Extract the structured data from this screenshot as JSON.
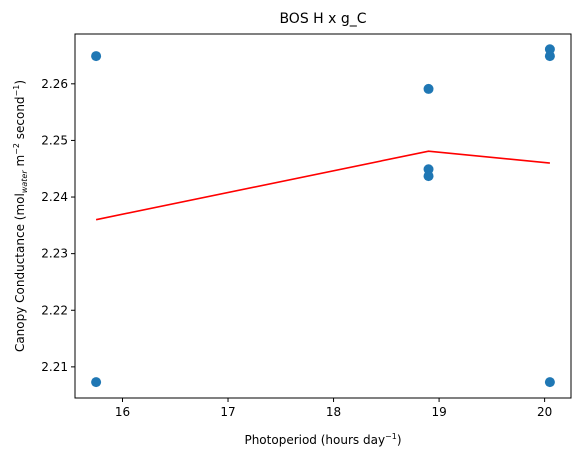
{
  "chart_data": {
    "type": "scatter",
    "title": "BOS H x g_C",
    "xlabel": {
      "main": "Photoperiod (hours day",
      "sup": "−1",
      "tail": ")"
    },
    "ylabel": {
      "part1": "Canopy Conductance (mol",
      "sub": "water",
      "part2": " m",
      "sup1": "−2",
      "part3": " second",
      "sup2": "−1",
      "part4": ")"
    },
    "xlim": [
      15.55,
      20.25
    ],
    "ylim": [
      2.2045,
      2.2688
    ],
    "xticks": [
      16,
      17,
      18,
      19,
      20
    ],
    "xtick_labels": [
      "16",
      "17",
      "18",
      "19",
      "20"
    ],
    "yticks": [
      2.21,
      2.22,
      2.23,
      2.24,
      2.25,
      2.26
    ],
    "ytick_labels": [
      "2.21",
      "2.22",
      "2.23",
      "2.24",
      "2.25",
      "2.26"
    ],
    "points": [
      {
        "x": 15.75,
        "y": 2.2649
      },
      {
        "x": 15.75,
        "y": 2.2073
      },
      {
        "x": 18.9,
        "y": 2.2591
      },
      {
        "x": 18.9,
        "y": 2.2449
      },
      {
        "x": 18.9,
        "y": 2.2437
      },
      {
        "x": 20.05,
        "y": 2.2661
      },
      {
        "x": 20.05,
        "y": 2.2649
      },
      {
        "x": 20.05,
        "y": 2.2073
      }
    ],
    "fit_line": [
      {
        "x": 15.75,
        "y": 2.236
      },
      {
        "x": 18.9,
        "y": 2.2481
      },
      {
        "x": 20.05,
        "y": 2.246
      }
    ],
    "point_color": "#1f77b4",
    "line_color": "#ff0000",
    "grid": false,
    "legend": "none"
  }
}
